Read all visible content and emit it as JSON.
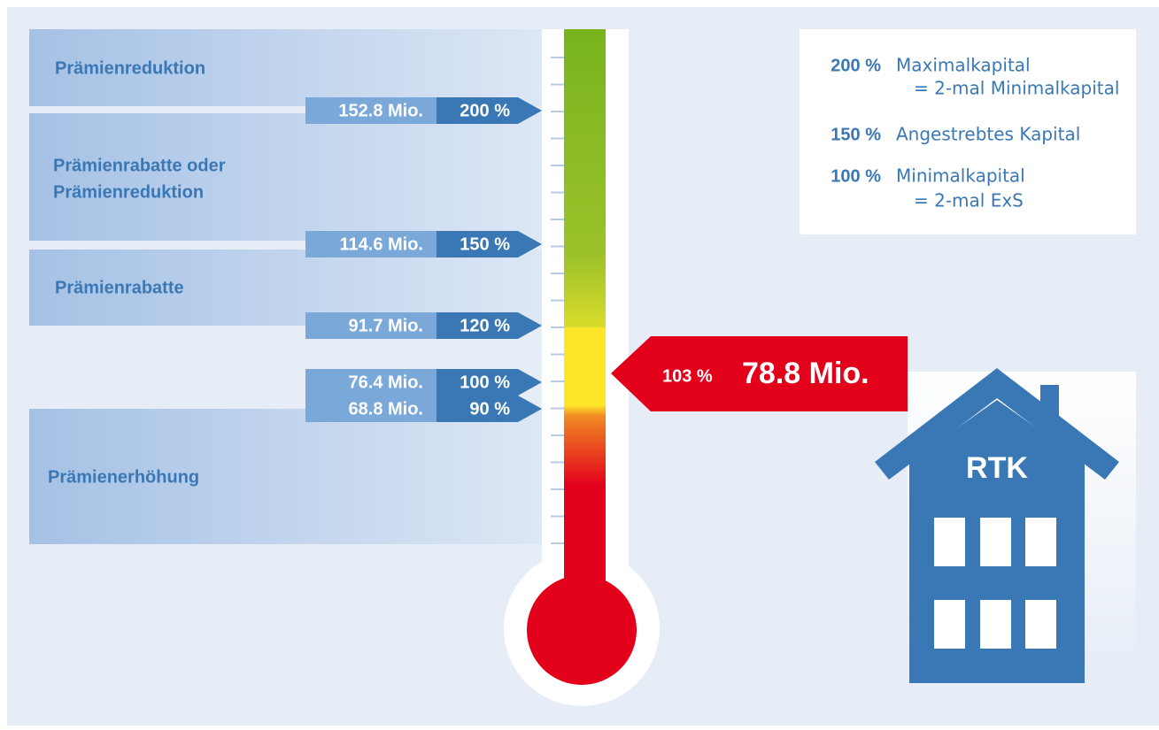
{
  "zones": [
    {
      "lines": [
        "Prämienreduktion"
      ]
    },
    {
      "lines": [
        "Prämienrabatte oder",
        "Prämienreduktion"
      ]
    },
    {
      "lines": [
        "Prämienrabatte"
      ]
    },
    {
      "lines": [
        "Prämienerhöhung"
      ]
    }
  ],
  "markers": [
    {
      "amount": "152.8 Mio.",
      "percent": "200 %"
    },
    {
      "amount": "114.6 Mio.",
      "percent": "150 %"
    },
    {
      "amount": "91.7 Mio.",
      "percent": "120 %"
    },
    {
      "amount": "76.4 Mio.",
      "percent": "100 %"
    },
    {
      "amount": "68.8 Mio.",
      "percent": "90 %"
    }
  ],
  "current": {
    "percent": "103 %",
    "amount": "78.8 Mio."
  },
  "legend": [
    {
      "percent": "200 %",
      "lines": [
        "Maximalkapital",
        "= 2-mal Minimalkapital"
      ]
    },
    {
      "percent": "150 %",
      "lines": [
        "Angestrebtes Kapital"
      ]
    },
    {
      "percent": "100 %",
      "lines": [
        "Minimalkapital",
        "= 2-mal ExS"
      ]
    }
  ],
  "house": {
    "label": "RTK"
  }
}
